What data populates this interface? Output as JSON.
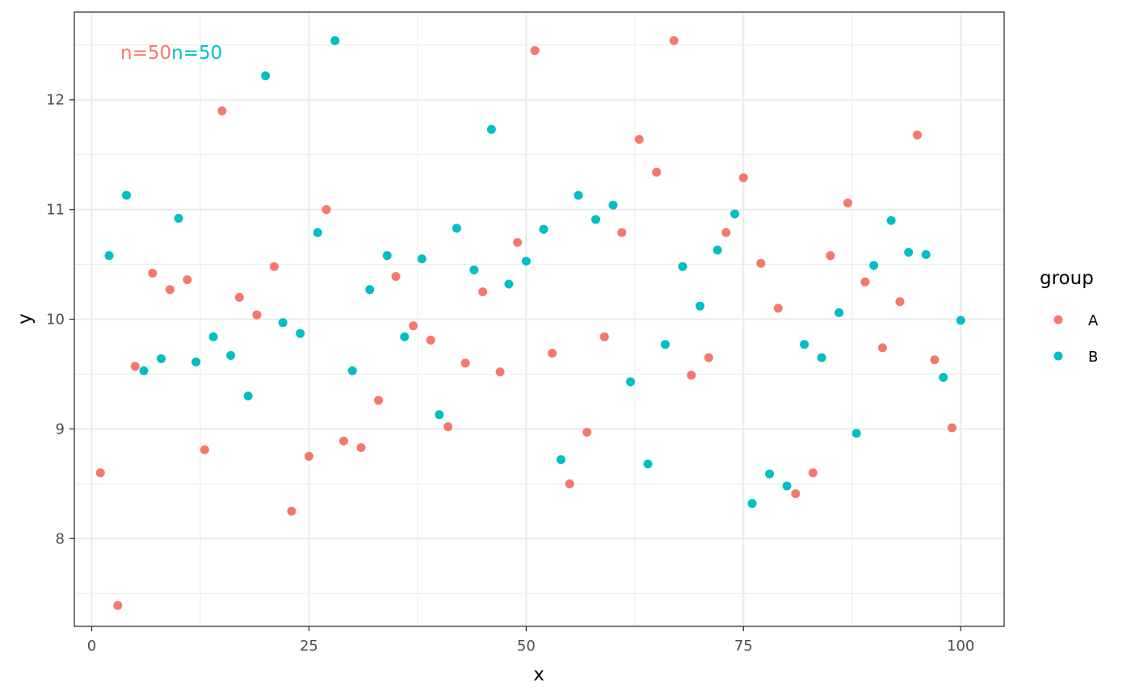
{
  "chart_data": {
    "type": "scatter",
    "title": "",
    "xlabel": "x",
    "ylabel": "y",
    "xlim": [
      -2,
      105
    ],
    "ylim": [
      7.2,
      12.8
    ],
    "x_ticks": [
      0,
      25,
      50,
      75,
      100
    ],
    "y_ticks": [
      8,
      9,
      10,
      11,
      12
    ],
    "x_tick_labels": [
      "0",
      "25",
      "50",
      "75",
      "100"
    ],
    "y_tick_labels": [
      "8",
      "9",
      "10",
      "11",
      "12"
    ],
    "grid": true,
    "legend": {
      "title": "group",
      "placement": "right",
      "entries": [
        "A",
        "B"
      ]
    },
    "annotations": [
      {
        "text": "n=50",
        "series": "A"
      },
      {
        "text": "n=50",
        "series": "B"
      }
    ],
    "series": [
      {
        "name": "A",
        "color": "#F8766D",
        "x": [
          1,
          3,
          5,
          7,
          9,
          11,
          13,
          15,
          17,
          19,
          21,
          23,
          25,
          27,
          29,
          31,
          33,
          35,
          37,
          39,
          41,
          43,
          45,
          47,
          49,
          51,
          53,
          55,
          57,
          59,
          61,
          63,
          65,
          67,
          69,
          71,
          73,
          75,
          77,
          79,
          81,
          83,
          85,
          87,
          89,
          91,
          93,
          95,
          97,
          99
        ],
        "y": [
          8.6,
          7.39,
          9.57,
          10.42,
          10.27,
          10.36,
          8.81,
          11.9,
          10.2,
          10.04,
          10.48,
          8.25,
          8.75,
          11.0,
          8.89,
          8.83,
          9.26,
          10.39,
          9.94,
          9.81,
          9.02,
          9.6,
          10.25,
          9.52,
          10.7,
          12.45,
          9.69,
          8.5,
          8.97,
          9.84,
          10.79,
          11.64,
          11.34,
          12.54,
          9.49,
          9.65,
          10.79,
          11.29,
          10.51,
          10.1,
          8.41,
          8.6,
          10.58,
          11.06,
          10.34,
          9.74,
          10.16,
          11.68,
          9.63,
          9.01
        ]
      },
      {
        "name": "B",
        "color": "#00BFC4",
        "x": [
          2,
          4,
          6,
          8,
          10,
          12,
          14,
          16,
          18,
          20,
          22,
          24,
          26,
          28,
          30,
          32,
          34,
          36,
          38,
          40,
          42,
          44,
          46,
          48,
          50,
          52,
          54,
          56,
          58,
          60,
          62,
          64,
          66,
          68,
          70,
          72,
          74,
          76,
          78,
          80,
          82,
          84,
          86,
          88,
          90,
          92,
          94,
          96,
          98,
          100
        ],
        "y": [
          10.58,
          11.13,
          9.53,
          9.64,
          10.92,
          9.61,
          9.84,
          9.67,
          9.3,
          12.22,
          9.97,
          9.87,
          10.79,
          12.54,
          9.53,
          10.27,
          10.58,
          9.84,
          10.55,
          9.13,
          10.83,
          10.45,
          11.73,
          10.32,
          10.53,
          10.82,
          8.72,
          11.13,
          10.91,
          11.04,
          9.43,
          8.68,
          9.77,
          10.48,
          10.12,
          10.63,
          10.96,
          8.32,
          8.59,
          8.48,
          9.77,
          9.65,
          10.06,
          8.96,
          10.49,
          10.9,
          10.61,
          10.59,
          9.47,
          9.99
        ]
      }
    ]
  }
}
